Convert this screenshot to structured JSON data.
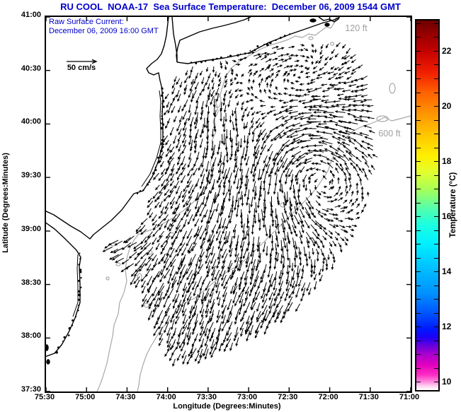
{
  "chart_data": {
    "type": "quiver",
    "title": "RU COOL  NOAA-17  Sea Surface Temperature:  December 06, 2009 1544 GMT",
    "title_color": "#0000CC",
    "overlay": {
      "line1": "Raw Surface Current:",
      "line2": "December 06, 2009 16:00 GMT",
      "color": "#0000CC"
    },
    "xlabel": "Longitude (Degrees:Minutes)",
    "ylabel": "Latitude (Degrees:Minutes)",
    "xticks": [
      "75:30",
      "75:00",
      "74:30",
      "74:00",
      "73:30",
      "73:00",
      "72:30",
      "72:00",
      "71:30",
      "71:00"
    ],
    "yticks": [
      "41:00",
      "40:30",
      "40:00",
      "39:30",
      "39:00",
      "38:30",
      "38:00",
      "37:30"
    ],
    "xlim": [
      "75:30 W",
      "71:00 W"
    ],
    "ylim": [
      "37:30 N",
      "41:00 N"
    ],
    "grid": false,
    "scale_arrow": {
      "label": "50 cm/s",
      "value_cm_s": 50,
      "x": 29,
      "y": 63,
      "len": 42
    },
    "depth_labels": [
      {
        "text": "120 ft"
      },
      {
        "text": "600 ft"
      }
    ],
    "depth_label_color": "#A0A0A0",
    "contour_color": "#A8A8A8",
    "coast_color": "#000000",
    "colorbar": {
      "label": "Temperature (°C)",
      "min": 9.7,
      "max": 23.1,
      "tick_step": 0.5,
      "tick_labels": [
        22,
        20,
        18,
        16,
        14,
        12,
        10
      ],
      "stops": [
        [
          23.1,
          "#6E0000"
        ],
        [
          22.7,
          "#8E0000"
        ],
        [
          22.0,
          "#C40000"
        ],
        [
          21.2,
          "#F22000"
        ],
        [
          20.5,
          "#FF6000"
        ],
        [
          19.8,
          "#FF9000"
        ],
        [
          19.0,
          "#FFC400"
        ],
        [
          18.2,
          "#FFEE00"
        ],
        [
          17.6,
          "#E2FF2E"
        ],
        [
          17.0,
          "#AAFF55"
        ],
        [
          16.3,
          "#55FFAA"
        ],
        [
          15.7,
          "#1CFFE0"
        ],
        [
          15.0,
          "#00F0FF"
        ],
        [
          14.2,
          "#00C4FF"
        ],
        [
          13.2,
          "#0090FF"
        ],
        [
          12.4,
          "#004CFF"
        ],
        [
          11.9,
          "#0018FF"
        ],
        [
          11.6,
          "#2000F4"
        ],
        [
          11.3,
          "#6A00DC"
        ],
        [
          11.0,
          "#AA00CE"
        ],
        [
          10.6,
          "#E400BE"
        ],
        [
          10.25,
          "#FF2EC4"
        ],
        [
          10.0,
          "#FF8ADF"
        ],
        [
          9.85,
          "#FFD2F0"
        ],
        [
          9.7,
          "#FFFFFF"
        ]
      ]
    },
    "coastline": {
      "mainland": [
        173,
        0,
        170,
        26,
        167,
        40,
        163,
        52,
        157,
        60,
        149,
        66,
        142,
        73,
        145,
        79,
        152,
        82,
        159,
        79,
        161,
        90,
        163,
        98,
        165,
        116,
        164,
        136,
        165,
        156,
        165,
        178,
        159,
        203,
        150,
        226,
        137,
        246,
        124,
        250,
        107,
        273,
        92,
        288,
        77,
        300,
        67,
        308,
        62,
        314,
        49,
        304,
        35,
        296,
        23,
        288,
        11,
        280,
        -2,
        274
      ],
      "mainland2": [
        -2,
        290,
        12,
        300,
        25,
        312,
        35,
        322,
        43,
        330,
        49,
        340,
        47,
        353,
        48,
        378,
        48,
        404,
        41,
        426,
        32,
        446,
        22,
        464,
        12,
        476,
        -2,
        481
      ],
      "nj_inner": [
        160,
        104,
        162,
        120,
        161,
        140,
        162,
        160,
        162,
        178,
        156,
        200,
        147,
        222,
        135,
        240
      ],
      "delmarva_inner": [
        45,
        336,
        44,
        356,
        45,
        380,
        45,
        404,
        38,
        424
      ],
      "hudson_east": [
        178,
        0,
        180,
        24,
        183,
        40,
        185,
        54,
        185,
        64
      ],
      "li_south": [
        185,
        64,
        200,
        66,
        223,
        62,
        252,
        58,
        286,
        51,
        315,
        36,
        346,
        24,
        372,
        15,
        392,
        8,
        407,
        4,
        415,
        0
      ],
      "li_north": [
        289,
        0,
        280,
        4,
        267,
        8,
        252,
        12,
        235,
        16,
        217,
        21,
        203,
        27,
        189,
        33,
        186,
        43,
        184,
        54,
        185,
        64
      ],
      "montauk": [
        385,
        0,
        392,
        5,
        400,
        3,
        407,
        7,
        414,
        2
      ],
      "islands": [
        [
          377,
          5,
          4,
          2
        ],
        [
          397,
          11,
          3,
          2
        ],
        [
          1,
          468,
          2,
          4
        ],
        [
          3,
          488,
          2,
          3
        ]
      ],
      "clutter": [
        {
          "path": "mainland",
          "from": 11,
          "to": 19,
          "step": 5
        },
        {
          "path": "mainland2",
          "from": 4,
          "to": 12,
          "step": 6
        },
        {
          "path": "li_south",
          "from": 1,
          "to": 6,
          "step": 6
        }
      ]
    },
    "contours": {
      "ft120_east": [
        330,
        36,
        342,
        32,
        352,
        27,
        362,
        29,
        371,
        24,
        380,
        26,
        388,
        20,
        396,
        14,
        402,
        16,
        407,
        8,
        410,
        0
      ],
      "ft120_main": [
        330,
        36,
        316,
        40,
        302,
        46,
        288,
        54,
        274,
        62,
        262,
        72,
        254,
        84,
        250,
        96,
        246,
        110,
        240,
        120,
        243,
        134,
        236,
        148,
        240,
        162,
        234,
        176,
        238,
        192,
        232,
        206,
        235,
        222,
        228,
        236,
        220,
        248,
        208,
        262,
        194,
        274,
        180,
        284,
        166,
        292,
        152,
        300,
        140,
        304,
        130,
        308,
        124,
        316,
        118,
        328,
        114,
        342,
        112,
        358,
        114,
        374,
        110,
        390,
        104,
        404,
        102,
        420,
        96,
        436,
        94,
        452,
        90,
        470,
        86,
        490,
        80,
        510,
        76,
        521,
        72,
        530
      ],
      "ft600": [
        515,
        140,
        500,
        144,
        488,
        147,
        478,
        142,
        468,
        147,
        456,
        152,
        444,
        156,
        433,
        162,
        424,
        170,
        416,
        180,
        408,
        192,
        403,
        204,
        398,
        218,
        390,
        230,
        382,
        242,
        372,
        254,
        360,
        266,
        348,
        278,
        336,
        290,
        324,
        302,
        312,
        314,
        300,
        326,
        288,
        338,
        276,
        348,
        264,
        356,
        259,
        358,
        246,
        368,
        234,
        378,
        222,
        388,
        210,
        398,
        199,
        403,
        188,
        414,
        177,
        426,
        168,
        436,
        162,
        443,
        154,
        456,
        147,
        468,
        142,
        478,
        137,
        492,
        133,
        506,
        131,
        521,
        129,
        530
      ],
      "loops": [
        [
          489,
          101,
          4,
          7
        ],
        [
          475,
          144,
          8,
          4
        ],
        [
          242,
          118,
          5,
          10
        ],
        [
          374,
          30,
          3,
          2
        ],
        [
          404,
          38,
          2.5,
          2
        ],
        [
          177,
          308,
          4,
          3
        ],
        [
          147,
          333,
          3,
          3
        ],
        [
          132,
          368,
          3,
          5
        ],
        [
          142,
          408,
          3,
          3
        ],
        [
          102,
          350,
          3,
          2
        ],
        [
          87,
          370,
          2,
          2
        ],
        [
          95,
          322,
          3,
          2
        ],
        [
          334,
          266,
          3,
          3
        ],
        [
          351,
          204,
          5,
          4
        ]
      ]
    },
    "vector_field": {
      "units": "cm/s",
      "step": 8,
      "seed": 20091206,
      "dropout": 0.1,
      "len_scale": 7,
      "len_base": 4,
      "len_min": 3,
      "len_max": 14,
      "coverage": [
        184,
        78,
        207,
        70,
        237,
        64,
        277,
        54,
        317,
        44,
        357,
        36,
        392,
        30,
        425,
        34,
        442,
        52,
        452,
        78,
        464,
        118,
        470,
        163,
        468,
        208,
        458,
        248,
        442,
        288,
        421,
        328,
        392,
        373,
        357,
        408,
        317,
        436,
        277,
        456,
        237,
        472,
        205,
        483,
        183,
        486,
        170,
        473,
        162,
        448,
        150,
        418,
        137,
        388,
        122,
        361,
        102,
        338,
        89,
        326,
        95,
        316,
        112,
        311,
        129,
        300,
        142,
        278,
        151,
        246,
        159,
        213,
        165,
        178,
        169,
        143,
        173,
        108,
        177,
        86
      ],
      "base": [
        -0.42,
        0.55
      ],
      "patches": [
        {
          "cx": 307,
          "cy": 73,
          "r": 85,
          "dx": 0.95,
          "dy": -0.5,
          "s": 1.6
        },
        {
          "cx": 237,
          "cy": 408,
          "r": 95,
          "dx": -0.12,
          "dy": 1.0,
          "s": 1.15
        },
        {
          "cx": 107,
          "cy": 323,
          "r": 38,
          "dx": -1.0,
          "dy": 0.15,
          "s": 0.9
        },
        {
          "cx": 297,
          "cy": 308,
          "r": 120,
          "dx": -0.6,
          "dy": 0.8,
          "s": 0.7
        }
      ],
      "vortices": [
        {
          "cx": 365,
          "cy": 216,
          "r": 95,
          "s": 1.15
        },
        {
          "cx": 267,
          "cy": 128,
          "r": 55,
          "s": 0.5
        }
      ]
    }
  }
}
